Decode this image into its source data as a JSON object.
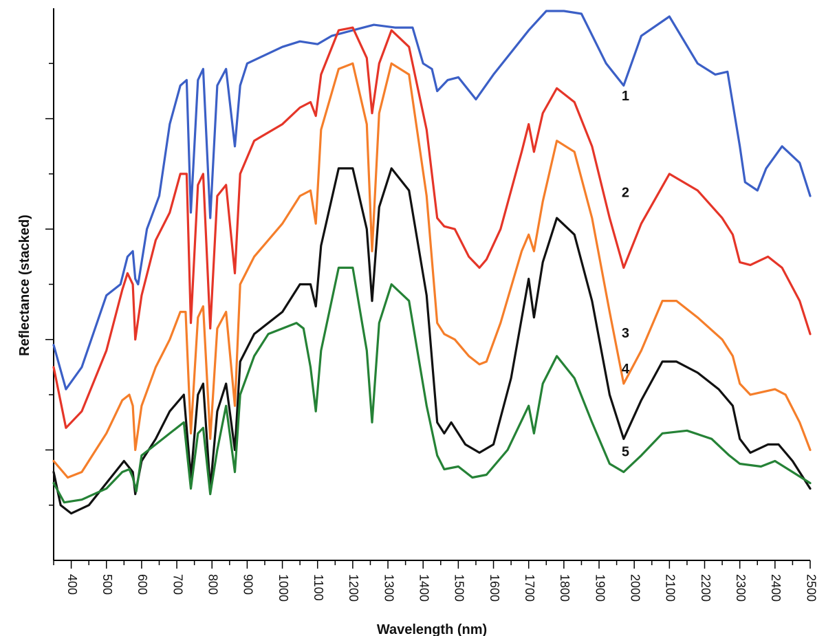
{
  "chart_data": {
    "type": "line",
    "xlabel": "Wavelength (nm)",
    "ylabel": "Reflectance (stacked)",
    "xlim": [
      350,
      2500
    ],
    "ylim": [
      0,
      10
    ],
    "x_major_ticks": [
      400,
      500,
      600,
      700,
      800,
      900,
      1000,
      1100,
      1200,
      1300,
      1400,
      1500,
      1600,
      1700,
      1800,
      1900,
      2000,
      2100,
      2200,
      2300,
      2400,
      2500
    ],
    "y_ticks": [
      1,
      2,
      3,
      4,
      5,
      6,
      7,
      8,
      9
    ],
    "y_tick_labels_shown": false,
    "grid": false,
    "series": [
      {
        "name": "1",
        "color": "#3b5fc6",
        "label_at": [
          1975,
          8.4
        ],
        "points": [
          [
            350,
            3.9
          ],
          [
            385,
            3.1
          ],
          [
            430,
            3.5
          ],
          [
            500,
            4.8
          ],
          [
            540,
            5.0
          ],
          [
            560,
            5.5
          ],
          [
            575,
            5.6
          ],
          [
            582,
            5.1
          ],
          [
            590,
            5.0
          ],
          [
            615,
            6.0
          ],
          [
            650,
            6.6
          ],
          [
            680,
            7.9
          ],
          [
            710,
            8.6
          ],
          [
            728,
            8.7
          ],
          [
            740,
            6.3
          ],
          [
            760,
            8.7
          ],
          [
            775,
            8.9
          ],
          [
            795,
            6.2
          ],
          [
            815,
            8.6
          ],
          [
            840,
            8.9
          ],
          [
            865,
            7.5
          ],
          [
            880,
            8.6
          ],
          [
            900,
            9.0
          ],
          [
            1000,
            9.3
          ],
          [
            1050,
            9.4
          ],
          [
            1100,
            9.35
          ],
          [
            1140,
            9.5
          ],
          [
            1200,
            9.6
          ],
          [
            1260,
            9.7
          ],
          [
            1320,
            9.65
          ],
          [
            1370,
            9.65
          ],
          [
            1400,
            9.0
          ],
          [
            1425,
            8.9
          ],
          [
            1440,
            8.5
          ],
          [
            1470,
            8.7
          ],
          [
            1500,
            8.75
          ],
          [
            1550,
            8.35
          ],
          [
            1600,
            8.8
          ],
          [
            1650,
            9.2
          ],
          [
            1700,
            9.6
          ],
          [
            1750,
            9.95
          ],
          [
            1800,
            9.95
          ],
          [
            1850,
            9.9
          ],
          [
            1920,
            9.0
          ],
          [
            1970,
            8.6
          ],
          [
            2020,
            9.5
          ],
          [
            2100,
            9.85
          ],
          [
            2180,
            9.0
          ],
          [
            2230,
            8.8
          ],
          [
            2265,
            8.85
          ],
          [
            2300,
            7.5
          ],
          [
            2315,
            6.85
          ],
          [
            2350,
            6.7
          ],
          [
            2375,
            7.1
          ],
          [
            2420,
            7.5
          ],
          [
            2470,
            7.2
          ],
          [
            2500,
            6.6
          ]
        ]
      },
      {
        "name": "2",
        "color": "#e53528",
        "label_at": [
          1975,
          6.65
        ],
        "points": [
          [
            350,
            3.5
          ],
          [
            385,
            2.4
          ],
          [
            430,
            2.7
          ],
          [
            500,
            3.8
          ],
          [
            545,
            4.9
          ],
          [
            560,
            5.2
          ],
          [
            575,
            5.0
          ],
          [
            582,
            4.0
          ],
          [
            600,
            4.8
          ],
          [
            640,
            5.8
          ],
          [
            680,
            6.3
          ],
          [
            710,
            7.0
          ],
          [
            728,
            7.0
          ],
          [
            740,
            4.3
          ],
          [
            760,
            6.8
          ],
          [
            775,
            7.0
          ],
          [
            795,
            4.2
          ],
          [
            815,
            6.6
          ],
          [
            840,
            6.8
          ],
          [
            865,
            5.2
          ],
          [
            880,
            7.0
          ],
          [
            920,
            7.6
          ],
          [
            1000,
            7.9
          ],
          [
            1050,
            8.2
          ],
          [
            1080,
            8.3
          ],
          [
            1095,
            8.05
          ],
          [
            1110,
            8.8
          ],
          [
            1160,
            9.6
          ],
          [
            1200,
            9.65
          ],
          [
            1240,
            9.1
          ],
          [
            1255,
            8.1
          ],
          [
            1275,
            9.0
          ],
          [
            1310,
            9.6
          ],
          [
            1360,
            9.3
          ],
          [
            1410,
            7.8
          ],
          [
            1440,
            6.2
          ],
          [
            1460,
            6.05
          ],
          [
            1490,
            6.0
          ],
          [
            1530,
            5.5
          ],
          [
            1560,
            5.3
          ],
          [
            1580,
            5.45
          ],
          [
            1620,
            6.0
          ],
          [
            1680,
            7.4
          ],
          [
            1700,
            7.9
          ],
          [
            1715,
            7.4
          ],
          [
            1740,
            8.1
          ],
          [
            1780,
            8.55
          ],
          [
            1830,
            8.3
          ],
          [
            1880,
            7.5
          ],
          [
            1930,
            6.2
          ],
          [
            1970,
            5.3
          ],
          [
            2020,
            6.1
          ],
          [
            2100,
            7.0
          ],
          [
            2180,
            6.7
          ],
          [
            2250,
            6.2
          ],
          [
            2280,
            5.9
          ],
          [
            2300,
            5.4
          ],
          [
            2330,
            5.35
          ],
          [
            2380,
            5.5
          ],
          [
            2420,
            5.3
          ],
          [
            2470,
            4.7
          ],
          [
            2500,
            4.1
          ]
        ]
      },
      {
        "name": "3",
        "color": "#f57e2a",
        "label_at": [
          1975,
          4.1
        ],
        "points": [
          [
            350,
            1.8
          ],
          [
            390,
            1.5
          ],
          [
            430,
            1.6
          ],
          [
            500,
            2.3
          ],
          [
            545,
            2.9
          ],
          [
            565,
            3.0
          ],
          [
            575,
            2.8
          ],
          [
            582,
            2.0
          ],
          [
            600,
            2.8
          ],
          [
            640,
            3.5
          ],
          [
            680,
            4.0
          ],
          [
            710,
            4.5
          ],
          [
            725,
            4.5
          ],
          [
            740,
            2.3
          ],
          [
            760,
            4.4
          ],
          [
            775,
            4.6
          ],
          [
            795,
            2.2
          ],
          [
            815,
            4.2
          ],
          [
            840,
            4.5
          ],
          [
            865,
            2.8
          ],
          [
            880,
            5.0
          ],
          [
            920,
            5.5
          ],
          [
            1000,
            6.1
          ],
          [
            1050,
            6.6
          ],
          [
            1080,
            6.7
          ],
          [
            1095,
            6.1
          ],
          [
            1110,
            7.8
          ],
          [
            1160,
            8.9
          ],
          [
            1200,
            9.0
          ],
          [
            1240,
            7.9
          ],
          [
            1255,
            5.6
          ],
          [
            1275,
            8.1
          ],
          [
            1310,
            9.0
          ],
          [
            1360,
            8.8
          ],
          [
            1410,
            6.6
          ],
          [
            1440,
            4.3
          ],
          [
            1460,
            4.1
          ],
          [
            1490,
            4.0
          ],
          [
            1530,
            3.7
          ],
          [
            1560,
            3.55
          ],
          [
            1580,
            3.6
          ],
          [
            1620,
            4.3
          ],
          [
            1680,
            5.6
          ],
          [
            1700,
            5.9
          ],
          [
            1715,
            5.6
          ],
          [
            1740,
            6.5
          ],
          [
            1780,
            7.6
          ],
          [
            1830,
            7.4
          ],
          [
            1880,
            6.2
          ],
          [
            1930,
            4.5
          ],
          [
            1970,
            3.2
          ],
          [
            2020,
            3.8
          ],
          [
            2080,
            4.7
          ],
          [
            2120,
            4.7
          ],
          [
            2180,
            4.4
          ],
          [
            2250,
            4.0
          ],
          [
            2280,
            3.7
          ],
          [
            2300,
            3.2
          ],
          [
            2330,
            3.0
          ],
          [
            2400,
            3.1
          ],
          [
            2430,
            3.0
          ],
          [
            2470,
            2.5
          ],
          [
            2500,
            2.0
          ]
        ]
      },
      {
        "name": "4",
        "color": "#111111",
        "label_at": [
          1975,
          3.45
        ],
        "points": [
          [
            350,
            1.6
          ],
          [
            370,
            1.0
          ],
          [
            400,
            0.85
          ],
          [
            450,
            1.0
          ],
          [
            500,
            1.4
          ],
          [
            550,
            1.8
          ],
          [
            575,
            1.6
          ],
          [
            582,
            1.2
          ],
          [
            600,
            1.8
          ],
          [
            640,
            2.2
          ],
          [
            680,
            2.7
          ],
          [
            720,
            3.0
          ],
          [
            740,
            1.5
          ],
          [
            760,
            3.0
          ],
          [
            775,
            3.2
          ],
          [
            795,
            1.3
          ],
          [
            815,
            2.7
          ],
          [
            840,
            3.2
          ],
          [
            865,
            2.0
          ],
          [
            880,
            3.6
          ],
          [
            920,
            4.1
          ],
          [
            1000,
            4.5
          ],
          [
            1050,
            5.0
          ],
          [
            1080,
            5.0
          ],
          [
            1095,
            4.6
          ],
          [
            1110,
            5.7
          ],
          [
            1160,
            7.1
          ],
          [
            1200,
            7.1
          ],
          [
            1240,
            6.0
          ],
          [
            1255,
            4.7
          ],
          [
            1275,
            6.4
          ],
          [
            1310,
            7.1
          ],
          [
            1360,
            6.7
          ],
          [
            1410,
            4.8
          ],
          [
            1440,
            2.5
          ],
          [
            1460,
            2.3
          ],
          [
            1480,
            2.5
          ],
          [
            1520,
            2.1
          ],
          [
            1560,
            1.95
          ],
          [
            1600,
            2.1
          ],
          [
            1650,
            3.3
          ],
          [
            1700,
            5.1
          ],
          [
            1715,
            4.4
          ],
          [
            1740,
            5.4
          ],
          [
            1780,
            6.2
          ],
          [
            1830,
            5.9
          ],
          [
            1880,
            4.7
          ],
          [
            1930,
            3.0
          ],
          [
            1970,
            2.2
          ],
          [
            2020,
            2.9
          ],
          [
            2080,
            3.6
          ],
          [
            2120,
            3.6
          ],
          [
            2180,
            3.4
          ],
          [
            2240,
            3.1
          ],
          [
            2280,
            2.8
          ],
          [
            2300,
            2.2
          ],
          [
            2330,
            1.95
          ],
          [
            2380,
            2.1
          ],
          [
            2410,
            2.1
          ],
          [
            2450,
            1.8
          ],
          [
            2500,
            1.3
          ]
        ]
      },
      {
        "name": "5",
        "color": "#258236",
        "label_at": [
          1975,
          1.95
        ],
        "points": [
          [
            350,
            1.4
          ],
          [
            380,
            1.05
          ],
          [
            430,
            1.1
          ],
          [
            500,
            1.3
          ],
          [
            545,
            1.6
          ],
          [
            565,
            1.65
          ],
          [
            575,
            1.5
          ],
          [
            585,
            1.25
          ],
          [
            600,
            1.9
          ],
          [
            640,
            2.1
          ],
          [
            680,
            2.3
          ],
          [
            720,
            2.5
          ],
          [
            740,
            1.3
          ],
          [
            760,
            2.3
          ],
          [
            775,
            2.4
          ],
          [
            795,
            1.2
          ],
          [
            815,
            2.0
          ],
          [
            840,
            2.8
          ],
          [
            865,
            1.6
          ],
          [
            880,
            3.0
          ],
          [
            920,
            3.7
          ],
          [
            960,
            4.1
          ],
          [
            1000,
            4.2
          ],
          [
            1040,
            4.3
          ],
          [
            1060,
            4.2
          ],
          [
            1080,
            3.5
          ],
          [
            1095,
            2.7
          ],
          [
            1110,
            3.8
          ],
          [
            1160,
            5.3
          ],
          [
            1200,
            5.3
          ],
          [
            1240,
            3.8
          ],
          [
            1255,
            2.5
          ],
          [
            1275,
            4.3
          ],
          [
            1310,
            5.0
          ],
          [
            1360,
            4.7
          ],
          [
            1410,
            2.8
          ],
          [
            1440,
            1.9
          ],
          [
            1460,
            1.65
          ],
          [
            1500,
            1.7
          ],
          [
            1540,
            1.5
          ],
          [
            1580,
            1.55
          ],
          [
            1640,
            2.0
          ],
          [
            1700,
            2.8
          ],
          [
            1715,
            2.3
          ],
          [
            1740,
            3.2
          ],
          [
            1780,
            3.7
          ],
          [
            1830,
            3.3
          ],
          [
            1880,
            2.5
          ],
          [
            1930,
            1.75
          ],
          [
            1970,
            1.6
          ],
          [
            2020,
            1.9
          ],
          [
            2080,
            2.3
          ],
          [
            2150,
            2.35
          ],
          [
            2220,
            2.2
          ],
          [
            2270,
            1.9
          ],
          [
            2300,
            1.75
          ],
          [
            2360,
            1.7
          ],
          [
            2400,
            1.8
          ],
          [
            2450,
            1.6
          ],
          [
            2500,
            1.4
          ]
        ]
      }
    ]
  }
}
